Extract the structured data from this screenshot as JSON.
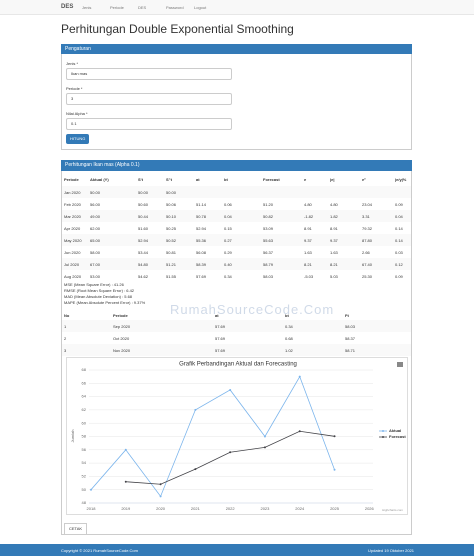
{
  "nav": {
    "brand": "DES",
    "items": [
      "Jenis",
      "Periode",
      "DES",
      "Password",
      "Logout"
    ]
  },
  "header": {
    "title": "Perhitungan Double Exponential Smoothing"
  },
  "settings": {
    "title": "Pengaturan",
    "fields": [
      {
        "label": "Jenis *",
        "value": "Ikan mas"
      },
      {
        "label": "Periode *",
        "value": "3"
      },
      {
        "label": "Nilai Alpha *",
        "value": "0.1"
      }
    ],
    "button": "HITUNG"
  },
  "calc": {
    "title": "Perhitungan Ikan mas (Alpha 0.1)",
    "table": {
      "header": [
        "Periode",
        "Aktual (Y)",
        "S't",
        "S\"t",
        "at",
        "bt",
        "Forecast",
        "e",
        "|e|",
        "e²",
        "|e/y|%"
      ],
      "rows": [
        [
          "Jan 2020",
          "50.00",
          "50.00",
          "50.00"
        ],
        [
          "Feb 2020",
          "56.00",
          "50.60",
          "50.06",
          "51.14",
          "0.06",
          "51.20",
          "4.80",
          "4.80",
          "23.04",
          "0.09"
        ],
        [
          "Mar 2020",
          "49.00",
          "50.44",
          "50.10",
          "50.78",
          "0.04",
          "50.82",
          "-1.82",
          "1.82",
          "3.31",
          "0.04"
        ],
        [
          "Apr 2020",
          "62.00",
          "51.60",
          "50.25",
          "52.94",
          "0.15",
          "53.09",
          "8.91",
          "8.91",
          "79.32",
          "0.14"
        ],
        [
          "May 2020",
          "65.00",
          "52.94",
          "50.52",
          "55.36",
          "0.27",
          "55.63",
          "9.37",
          "9.37",
          "87.80",
          "0.14"
        ],
        [
          "Jun 2020",
          "58.00",
          "53.44",
          "50.81",
          "56.08",
          "0.29",
          "56.37",
          "1.63",
          "1.63",
          "2.66",
          "0.03"
        ],
        [
          "Jul 2020",
          "67.00",
          "54.80",
          "51.21",
          "58.39",
          "0.40",
          "58.79",
          "8.21",
          "8.21",
          "67.40",
          "0.12"
        ],
        [
          "Aug 2020",
          "53.00",
          "54.62",
          "51.55",
          "57.69",
          "0.34",
          "58.03",
          "-5.03",
          "5.03",
          "25.30",
          "0.09"
        ]
      ]
    },
    "metrics": [
      "MSE (Mean Square Error) : 41.26",
      "RMSE (Root Mean Square Error) : 6.42",
      "MAD (Mean Absolute Deviation) : 5.68",
      "MAPE (Mean Absolute Percent Error) : 9.37%"
    ]
  },
  "forecast": {
    "header": [
      "No",
      "Periode",
      "at",
      "bt",
      "Ft"
    ],
    "rows": [
      [
        "1",
        "Sep 2020",
        "57.69",
        "0.34",
        "58.03"
      ],
      [
        "2",
        "Oct 2020",
        "57.69",
        "0.68",
        "58.37"
      ],
      [
        "3",
        "Nov 2020",
        "57.69",
        "1.02",
        "58.71"
      ]
    ]
  },
  "watermark": "RumahSourceCode.Com",
  "chart_data": {
    "type": "line",
    "title": "Grafik Perbandingan Aktual dan Forecasting",
    "y_label": "Jumlah",
    "categories": [
      "2018",
      "2019",
      "2020",
      "2021",
      "2022",
      "2023",
      "2024",
      "2025",
      "2026"
    ],
    "series": [
      {
        "name": "Aktual",
        "color": "#7cb5ec",
        "values": [
          50,
          56,
          49,
          62,
          65,
          58,
          67,
          53,
          null
        ]
      },
      {
        "name": "Forecast",
        "color": "#434348",
        "values": [
          null,
          51.2,
          50.82,
          53.09,
          55.63,
          56.37,
          58.79,
          58.03,
          null
        ]
      }
    ],
    "ylim": [
      48,
      68
    ],
    "yticks": [
      48,
      50,
      52,
      54,
      56,
      58,
      60,
      62,
      64,
      66,
      68
    ],
    "grid": true,
    "legend": "right",
    "credits": "Highcharts.com"
  },
  "print_button": "CETAK",
  "footer": {
    "left": "Copyright © 2021 RumahSourceCode.Com",
    "right": "Updated 19 Oktober 2021"
  }
}
